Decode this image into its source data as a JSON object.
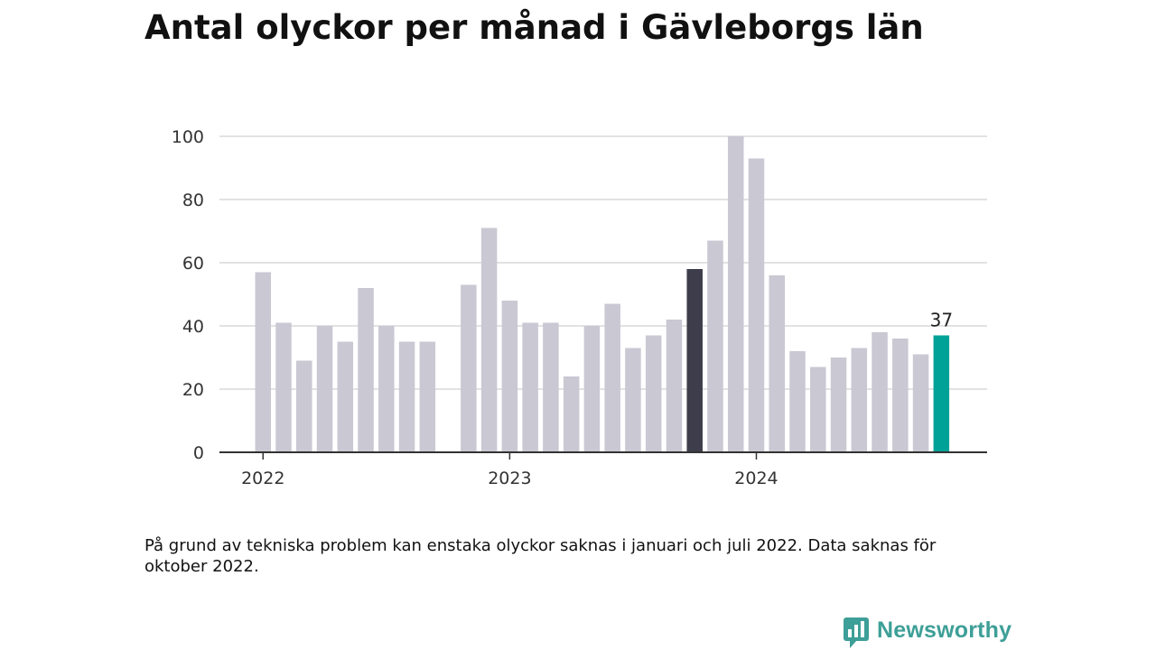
{
  "header": {
    "title": "Antal olyckor per månad i Gävleborgs län"
  },
  "chart_data": {
    "type": "bar",
    "title": "Antal olyckor per månad i Gävleborgs län",
    "xlabel": "",
    "ylabel": "",
    "ylim": [
      0,
      100
    ],
    "yticks": [
      0,
      20,
      40,
      60,
      80,
      100
    ],
    "grid": true,
    "year_labels": [
      {
        "label": "2022",
        "month": "2022-01"
      },
      {
        "label": "2023",
        "month": "2023-01"
      },
      {
        "label": "2024",
        "month": "2024-01"
      }
    ],
    "categories": [
      "2022-01",
      "2022-02",
      "2022-03",
      "2022-04",
      "2022-05",
      "2022-06",
      "2022-07",
      "2022-08",
      "2022-09",
      "2022-10",
      "2022-11",
      "2022-12",
      "2023-01",
      "2023-02",
      "2023-03",
      "2023-04",
      "2023-05",
      "2023-06",
      "2023-07",
      "2023-08",
      "2023-09",
      "2023-10",
      "2023-11",
      "2023-12",
      "2024-01",
      "2024-02",
      "2024-03",
      "2024-04",
      "2024-05",
      "2024-06",
      "2024-07",
      "2024-08",
      "2024-09",
      "2024-10"
    ],
    "values": [
      57,
      41,
      29,
      40,
      35,
      52,
      40,
      35,
      35,
      null,
      53,
      71,
      48,
      41,
      41,
      24,
      40,
      47,
      33,
      37,
      42,
      58,
      67,
      100,
      93,
      56,
      32,
      27,
      30,
      33,
      38,
      36,
      31,
      37
    ],
    "highlight": [
      {
        "month": "2023-10",
        "color": "#3e3d4b"
      },
      {
        "month": "2024-10",
        "color": "#00a298"
      }
    ],
    "data_labels": [
      {
        "month": "2024-10",
        "text": "37"
      }
    ]
  },
  "colors": {
    "bar_default": "#c9c8d3",
    "bar_previous_year": "#3e3d4b",
    "bar_latest": "#00a298",
    "gridline": "#d9d9d9",
    "axis": "#333333",
    "brand": "#3d9f97"
  },
  "footnote": {
    "text": "På grund av tekniska problem kan enstaka olyckor saknas i januari och juli 2022. Data saknas för oktober 2022."
  },
  "logo": {
    "icon": "newsworthy-chart-bubble-icon",
    "text": "Newsworthy"
  }
}
